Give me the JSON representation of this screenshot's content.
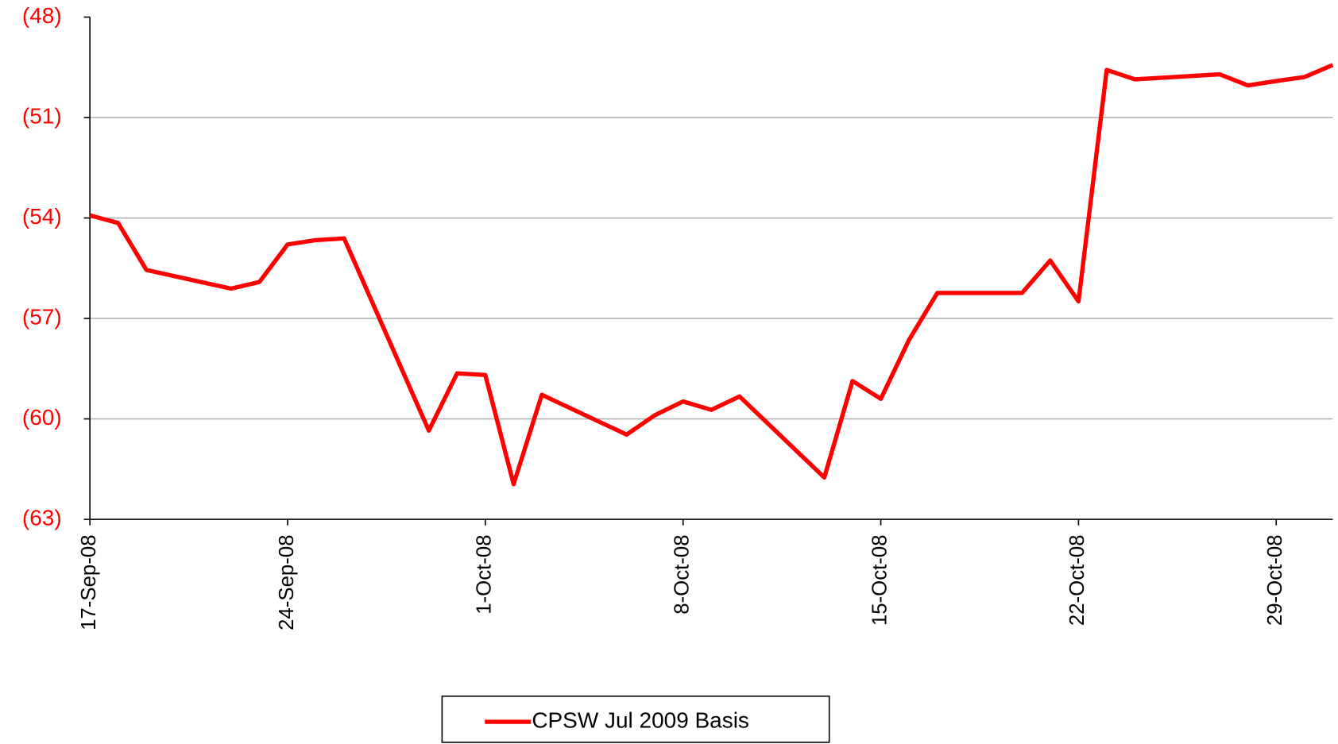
{
  "chart_data": {
    "type": "line",
    "x": [
      "2008-09-17",
      "2008-09-18",
      "2008-09-19",
      "2008-09-22",
      "2008-09-23",
      "2008-09-24",
      "2008-09-25",
      "2008-09-26",
      "2008-09-29",
      "2008-09-30",
      "2008-10-01",
      "2008-10-02",
      "2008-10-03",
      "2008-10-06",
      "2008-10-07",
      "2008-10-08",
      "2008-10-09",
      "2008-10-10",
      "2008-10-13",
      "2008-10-14",
      "2008-10-15",
      "2008-10-16",
      "2008-10-17",
      "2008-10-20",
      "2008-10-21",
      "2008-10-22",
      "2008-10-23",
      "2008-10-24",
      "2008-10-27",
      "2008-10-28",
      "2008-10-29",
      "2008-10-30",
      "2008-10-31"
    ],
    "series": [
      {
        "name": "CPSW Jul 2009 Basis",
        "color": "#ff0000",
        "values": [
          -53.92,
          -54.15,
          -55.55,
          -56.11,
          -55.91,
          -54.79,
          -54.66,
          -54.61,
          -60.35,
          -58.64,
          -58.69,
          -61.95,
          -59.28,
          -60.47,
          -59.89,
          -59.48,
          -59.73,
          -59.33,
          -61.75,
          -58.87,
          -59.4,
          -57.64,
          -56.24,
          -56.24,
          -55.27,
          -56.49,
          -49.58,
          -49.86,
          -49.71,
          -50.04,
          -49.91,
          -49.79,
          -49.43
        ]
      }
    ],
    "xlim": [
      "2008-09-17",
      "2008-10-31"
    ],
    "xticks": [
      {
        "value": "2008-09-17",
        "label": "17-Sep-08"
      },
      {
        "value": "2008-09-24",
        "label": "24-Sep-08"
      },
      {
        "value": "2008-10-01",
        "label": "1-Oct-08"
      },
      {
        "value": "2008-10-08",
        "label": "8-Oct-08"
      },
      {
        "value": "2008-10-15",
        "label": "15-Oct-08"
      },
      {
        "value": "2008-10-22",
        "label": "22-Oct-08"
      },
      {
        "value": "2008-10-29",
        "label": "29-Oct-08"
      }
    ],
    "ylim": [
      -63,
      -48
    ],
    "yticks": [
      {
        "value": -63,
        "label": "(63)"
      },
      {
        "value": -60,
        "label": "(60)"
      },
      {
        "value": -57,
        "label": "(57)"
      },
      {
        "value": -54,
        "label": "(54)"
      },
      {
        "value": -51,
        "label": "(51)"
      },
      {
        "value": -48,
        "label": "(48)"
      }
    ],
    "grid": true,
    "legend": "bottom"
  }
}
